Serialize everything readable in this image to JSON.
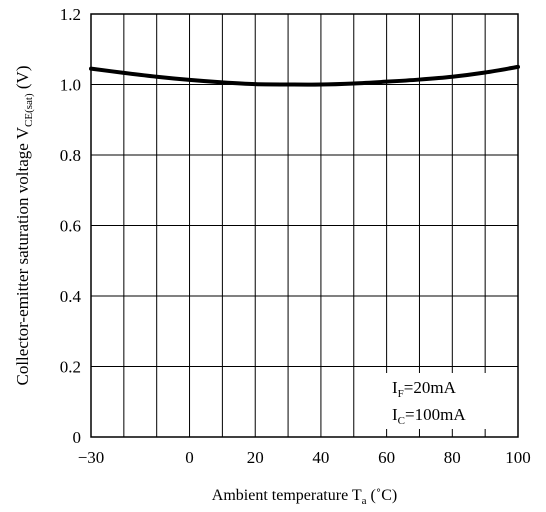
{
  "chart_data": {
    "type": "line",
    "xlabel": {
      "main": "Ambient temperature T",
      "sub": "a",
      "unit": " (˚C)"
    },
    "ylabel": {
      "main": "Collector-emitter saturation voltage V",
      "sub": "CE(sat)",
      "unit": " (V)"
    },
    "xlim": [
      -30,
      100
    ],
    "ylim": [
      0,
      1.2
    ],
    "xticks": [
      -30,
      0,
      20,
      40,
      60,
      80,
      100
    ],
    "xtick_labels": [
      "−30",
      "0",
      "20",
      "40",
      "60",
      "80",
      "100"
    ],
    "yticks": [
      0,
      0.2,
      0.4,
      0.6,
      0.8,
      1.0,
      1.2
    ],
    "ytick_labels": [
      "0",
      "0.2",
      "0.4",
      "0.6",
      "0.8",
      "1.0",
      "1.2"
    ],
    "x_gridlines": [
      -20,
      -10,
      0,
      10,
      20,
      30,
      40,
      50,
      60,
      70,
      80,
      90
    ],
    "y_gridlines": [
      0.2,
      0.4,
      0.6,
      0.8,
      1.0
    ],
    "grid": true,
    "series": [
      {
        "x": [
          -30,
          -20,
          -10,
          0,
          10,
          20,
          30,
          40,
          50,
          60,
          70,
          80,
          90,
          100
        ],
        "values": [
          1.045,
          1.033,
          1.022,
          1.013,
          1.006,
          1.001,
          1.0,
          1.0,
          1.003,
          1.008,
          1.014,
          1.022,
          1.034,
          1.05
        ]
      }
    ],
    "annotations": [
      {
        "main": "I",
        "sub": "F",
        "rest": "=20mA"
      },
      {
        "main": "I",
        "sub": "C",
        "rest": "=100mA"
      }
    ]
  }
}
